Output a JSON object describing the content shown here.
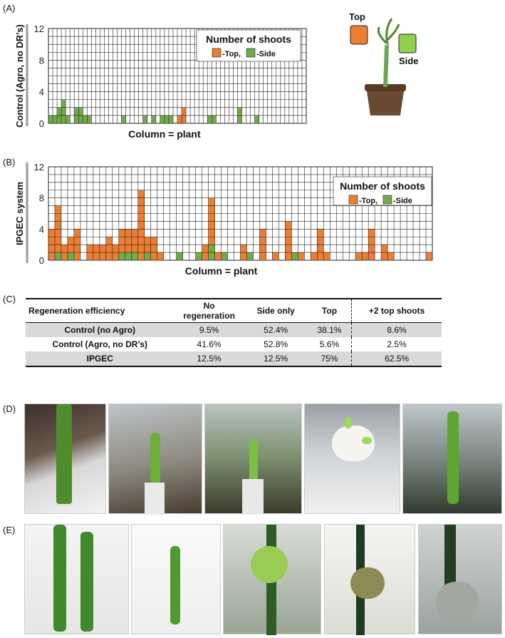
{
  "panels": {
    "a": "(A)",
    "b": "(B)",
    "c": "(C)",
    "d": "(D)",
    "e": "(E)"
  },
  "colors": {
    "top": "#ed7d31",
    "side": "#70ad47"
  },
  "diagram": {
    "top_label": "Top",
    "side_label": "Side"
  },
  "chart_data": [
    {
      "type": "bar",
      "stacked": true,
      "ylabel": "Control (Agro, no DR’s)",
      "xlabel": "Column = plant",
      "ylim": [
        0,
        12
      ],
      "yticks": [
        "0",
        "4",
        "8",
        "12"
      ],
      "grid": true,
      "legend": {
        "title": "Number of shoots",
        "top": "-Top,",
        "side": "-Side",
        "position": "top-right"
      },
      "series": [
        {
          "name": "-Top",
          "values": [
            0,
            0,
            0,
            0,
            0,
            0,
            0,
            0,
            0,
            0,
            0,
            0,
            0,
            0,
            0,
            0,
            0,
            0,
            0,
            0,
            0,
            0,
            0,
            0,
            0,
            0,
            0,
            0,
            0,
            0,
            1,
            2,
            0,
            0,
            0,
            0,
            0,
            0,
            0,
            0,
            0,
            0,
            0,
            0,
            0,
            0,
            0,
            0,
            0,
            0,
            0,
            0,
            0,
            0,
            0,
            0,
            0,
            0,
            0,
            0
          ]
        },
        {
          "name": "-Side",
          "values": [
            1,
            1,
            2,
            3,
            1,
            0,
            2,
            2,
            1,
            1,
            0,
            0,
            0,
            0,
            0,
            0,
            0,
            1,
            0,
            0,
            0,
            0,
            1,
            0,
            1,
            0,
            1,
            1,
            1,
            0,
            0,
            0,
            0,
            0,
            0,
            0,
            0,
            1,
            1,
            0,
            0,
            0,
            0,
            0,
            2,
            0,
            0,
            0,
            1,
            0,
            0,
            0,
            0,
            0,
            0,
            0,
            0,
            0,
            0,
            0
          ]
        }
      ]
    },
    {
      "type": "bar",
      "stacked": true,
      "ylabel": "IPGEC system",
      "xlabel": "Column = plant",
      "ylim": [
        0,
        12
      ],
      "yticks": [
        "0",
        "4",
        "8",
        "12"
      ],
      "grid": true,
      "legend": {
        "title": "Number of shoots",
        "top": "-Top,",
        "side": "-Side",
        "position": "top-right"
      },
      "series": [
        {
          "name": "-Top",
          "values": [
            4,
            6,
            2,
            2,
            4,
            0,
            2,
            2,
            2,
            3,
            2,
            3,
            3,
            3,
            9,
            2,
            3,
            1,
            0,
            0,
            0,
            0,
            0,
            0,
            2,
            6,
            1,
            0,
            0,
            0,
            2,
            0,
            0,
            4,
            0,
            1,
            0,
            5,
            0,
            1,
            0,
            1,
            4,
            1,
            0,
            0,
            0,
            0,
            1,
            1,
            4,
            0,
            2,
            1,
            0,
            0,
            0,
            0,
            0,
            1
          ]
        },
        {
          "name": "-Side",
          "values": [
            0,
            1,
            0,
            1,
            0,
            0,
            0,
            0,
            0,
            0,
            0,
            1,
            1,
            1,
            0,
            1,
            0,
            0,
            0,
            0,
            1,
            0,
            0,
            1,
            0,
            2,
            0,
            1,
            0,
            0,
            0,
            1,
            0,
            0,
            0,
            0,
            0,
            0,
            1,
            0,
            0,
            0,
            0,
            0,
            0,
            0,
            0,
            0,
            0,
            0,
            0,
            0,
            0,
            0,
            0,
            0,
            0,
            0,
            0,
            0
          ]
        }
      ]
    }
  ],
  "table": {
    "headers": [
      "Regeneration efficiency",
      "No regeneration",
      "Side only",
      "Top",
      "+2 top shoots"
    ],
    "rows": [
      {
        "label": "Control (no Agro)",
        "values": [
          "9.5%",
          "52.4%",
          "38.1%",
          "8.6%"
        ]
      },
      {
        "label": "Control (Agro, no DR’s)",
        "values": [
          "41.6%",
          "52.8%",
          "5.6%",
          "2.5%"
        ]
      },
      {
        "label": "IPGEC",
        "values": [
          "12.5%",
          "12.5%",
          "75%",
          "62.5%"
        ]
      }
    ]
  }
}
